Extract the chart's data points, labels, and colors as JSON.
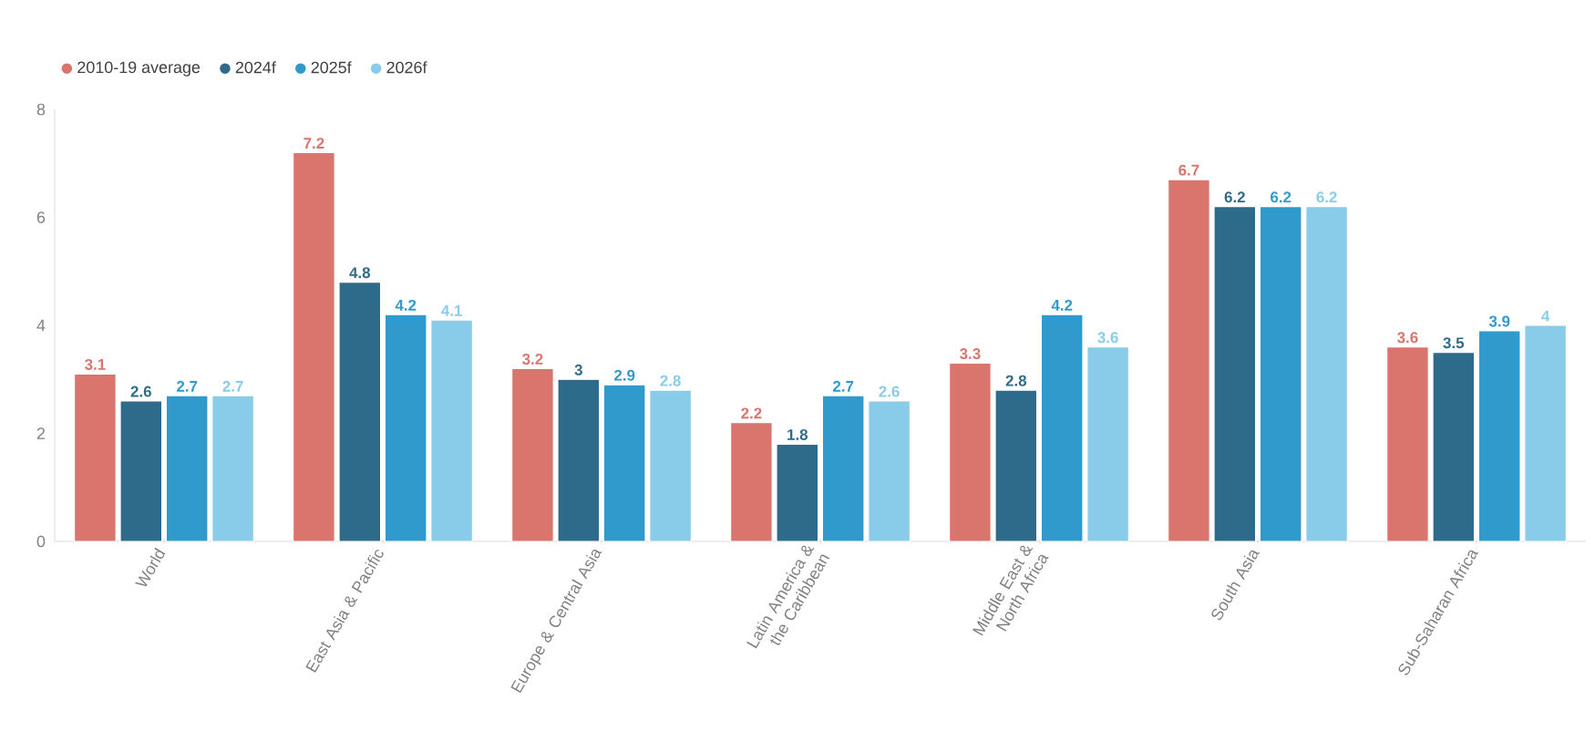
{
  "chart_data": {
    "type": "bar",
    "categories": [
      "World",
      "East Asia & Pacific",
      "Europe & Central Asia",
      "Latin America & the Caribbean",
      "Middle East & North Africa",
      "South Asia",
      "Sub-Saharan Africa"
    ],
    "series": [
      {
        "name": "2010-19 average",
        "color": "#d9756c",
        "values": [
          3.1,
          7.2,
          3.2,
          2.2,
          3.3,
          6.7,
          3.6
        ]
      },
      {
        "name": "2024f",
        "color": "#2e6b8a",
        "values": [
          2.6,
          4.8,
          3,
          1.8,
          2.8,
          6.2,
          3.5
        ]
      },
      {
        "name": "2025f",
        "color": "#2f9acb",
        "values": [
          2.7,
          4.2,
          2.9,
          2.7,
          4.2,
          6.2,
          3.9
        ]
      },
      {
        "name": "2026f",
        "color": "#88cce9",
        "values": [
          2.7,
          4.1,
          2.8,
          2.6,
          3.6,
          6.2,
          4
        ]
      }
    ],
    "ylim": [
      0,
      8
    ],
    "yticks": [
      0,
      2,
      4,
      6,
      8
    ],
    "data_labels": true,
    "legend": "top left",
    "grid": false
  }
}
